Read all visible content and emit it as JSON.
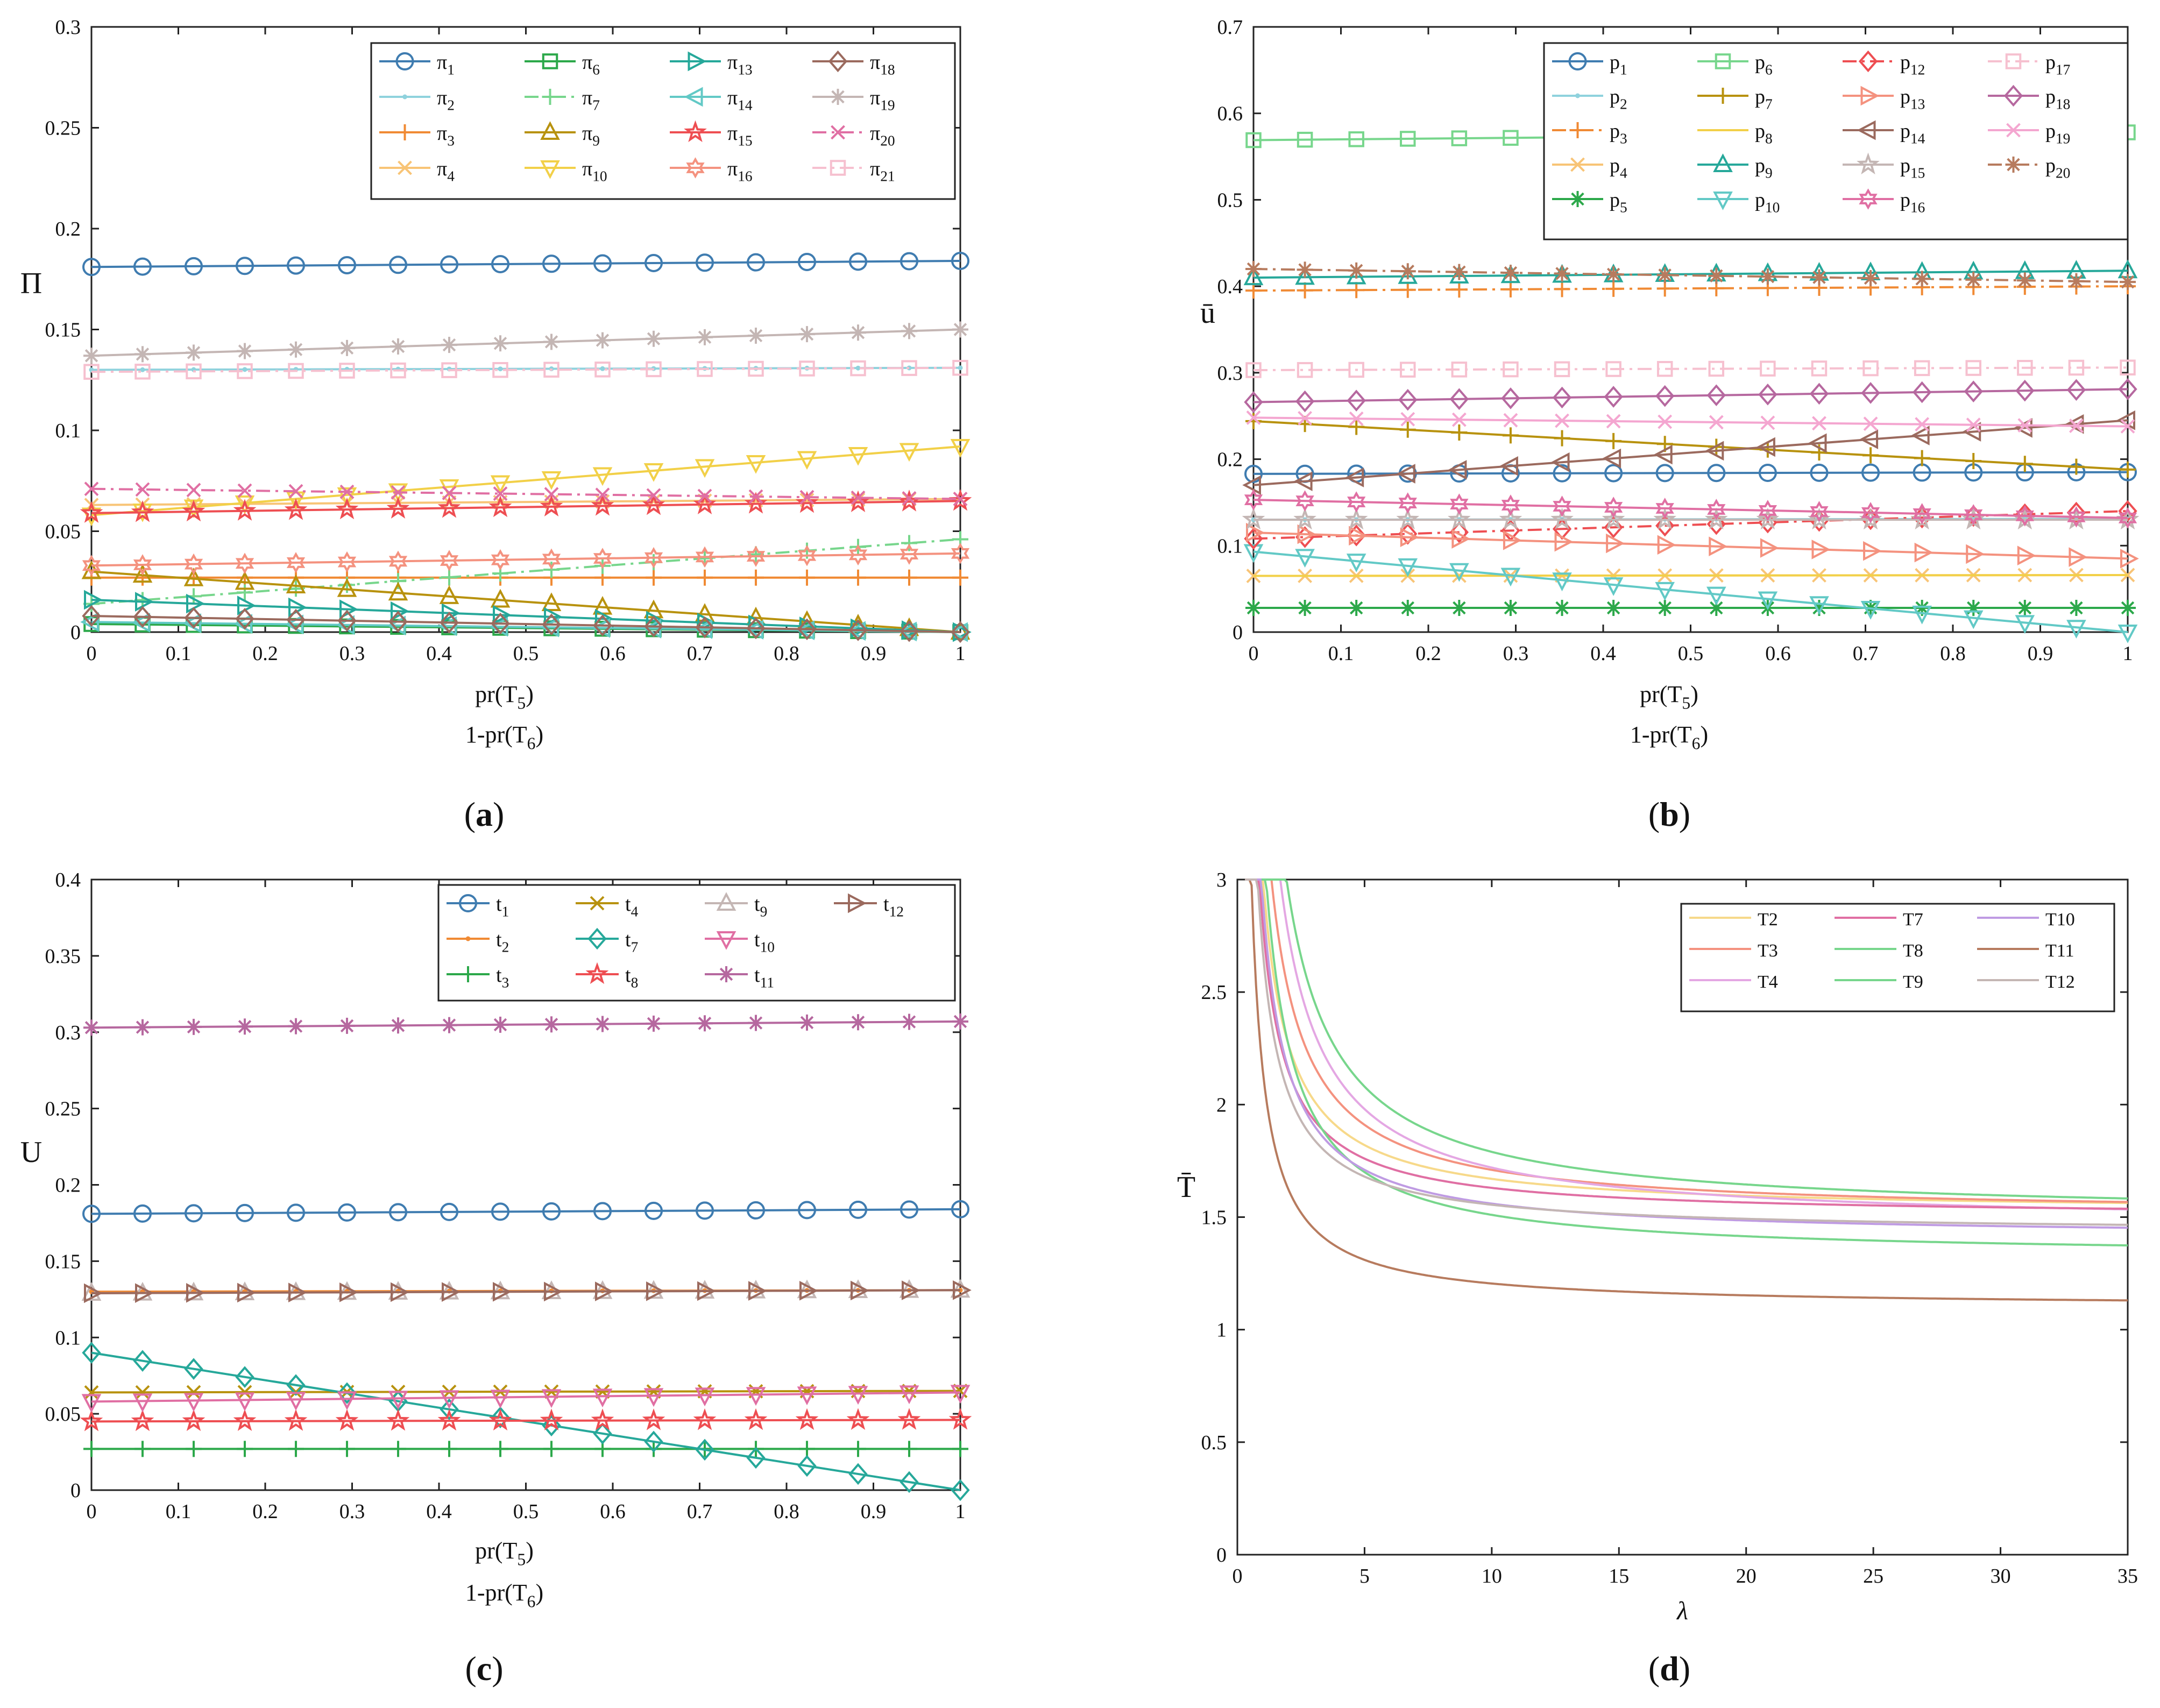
{
  "colors": {
    "c_blue": "#3f7cb0",
    "c_ltblue": "#8fd2dd",
    "c_orange": "#f08a34",
    "c_peach": "#f8c476",
    "c_green": "#2ca84a",
    "c_ltgreen": "#77d68c",
    "c_olive": "#b8920e",
    "c_gold": "#f2d048",
    "c_teal": "#26a89a",
    "c_cyan": "#62c9c6",
    "c_red": "#ee4e52",
    "c_salmon": "#f4927f",
    "c_grey": "#c4b6b4",
    "c_brown": "#9b6a5e",
    "c_purple": "#b6689f",
    "c_pink": "#f4a6d0",
    "c_magenta": "#e06fa3",
    "c_lavender": "#e4a7e3",
    "c_rust": "#b77b5e",
    "c_ltpink": "#f6c0cf",
    "c_yellow2": "#f7d98a",
    "c_violet": "#bf9be3"
  },
  "chart_data": [
    {
      "panel": "a",
      "caption_prefix": "(",
      "caption_letter": "a",
      "caption_suffix": ")",
      "type": "line",
      "ylabel": "Π",
      "xlabel_main": "pr(T",
      "xlabel_main_sub": "5",
      "xlabel_main_close": ")",
      "xlabel_second": "1-pr(T",
      "xlabel_second_sub": "6",
      "xlabel_second_close": ")",
      "xlim": [
        0,
        1
      ],
      "ylim": [
        0,
        0.3
      ],
      "xticks": [
        0,
        0.1,
        0.2,
        0.3,
        0.4,
        0.5,
        0.6,
        0.7,
        0.8,
        0.9,
        1
      ],
      "xtick_labels": [
        "0",
        "0.1",
        "0.2",
        "0.3",
        "0.4",
        "0.5",
        "0.6",
        "0.7",
        "0.8",
        "0.9",
        "1"
      ],
      "yticks": [
        0,
        0.05,
        0.1,
        0.15,
        0.2,
        0.25,
        0.3
      ],
      "ytick_labels": [
        "0",
        "0.05",
        "0.1",
        "0.15",
        "0.2",
        "0.25",
        "0.3"
      ],
      "legend_position": "top-right",
      "legend_columns": 4,
      "series": [
        {
          "name": "π",
          "sub": "1",
          "color": "c_blue",
          "marker": "circle",
          "dash": "solid",
          "start": 0.181,
          "end": 0.184
        },
        {
          "name": "π",
          "sub": "2",
          "color": "c_ltblue",
          "marker": "dot",
          "dash": "solid",
          "start": 0.13,
          "end": 0.131
        },
        {
          "name": "π",
          "sub": "3",
          "color": "c_orange",
          "marker": "plus",
          "dash": "solid",
          "start": 0.027,
          "end": 0.027
        },
        {
          "name": "π",
          "sub": "4",
          "color": "c_peach",
          "marker": "x",
          "dash": "solid",
          "start": 0.063,
          "end": 0.066
        },
        {
          "name": "π",
          "sub": "6",
          "color": "c_green",
          "marker": "square",
          "dash": "solid",
          "start": 0.004,
          "end": 0.0
        },
        {
          "name": "π",
          "sub": "7",
          "color": "c_ltgreen",
          "marker": "plus",
          "dash": "dashdot",
          "start": 0.014,
          "end": 0.046
        },
        {
          "name": "π",
          "sub": "9",
          "color": "c_olive",
          "marker": "triangle-up",
          "dash": "solid",
          "start": 0.03,
          "end": 0.0
        },
        {
          "name": "π",
          "sub": "10",
          "color": "c_gold",
          "marker": "triangle-down",
          "dash": "solid",
          "start": 0.058,
          "end": 0.092
        },
        {
          "name": "π",
          "sub": "13",
          "color": "c_teal",
          "marker": "triangle-right",
          "dash": "solid",
          "start": 0.016,
          "end": 0.0
        },
        {
          "name": "π",
          "sub": "14",
          "color": "c_cyan",
          "marker": "triangle-left",
          "dash": "solid",
          "start": 0.005,
          "end": 0.0
        },
        {
          "name": "π",
          "sub": "15",
          "color": "c_red",
          "marker": "star",
          "dash": "solid",
          "start": 0.059,
          "end": 0.065
        },
        {
          "name": "π",
          "sub": "16",
          "color": "c_salmon",
          "marker": "hexagram",
          "dash": "solid",
          "start": 0.033,
          "end": 0.039
        },
        {
          "name": "π",
          "sub": "18",
          "color": "c_brown",
          "marker": "diamond",
          "dash": "solid",
          "start": 0.008,
          "end": 0.0
        },
        {
          "name": "π",
          "sub": "19",
          "color": "c_grey",
          "marker": "asterisk",
          "dash": "solid",
          "start": 0.137,
          "end": 0.15
        },
        {
          "name": "π",
          "sub": "20",
          "color": "c_magenta",
          "marker": "x",
          "dash": "dashdot",
          "start": 0.071,
          "end": 0.066
        },
        {
          "name": "π",
          "sub": "21",
          "color": "c_ltpink",
          "marker": "square",
          "dash": "dashdot",
          "start": 0.129,
          "end": 0.131
        }
      ]
    },
    {
      "panel": "b",
      "caption_prefix": "(",
      "caption_letter": "b",
      "caption_suffix": ")",
      "type": "line",
      "ylabel": "ū",
      "xlabel_main": "pr(T",
      "xlabel_main_sub": "5",
      "xlabel_main_close": ")",
      "xlabel_second": "1-pr(T",
      "xlabel_second_sub": "6",
      "xlabel_second_close": ")",
      "xlim": [
        0,
        1
      ],
      "ylim": [
        0,
        0.7
      ],
      "xticks": [
        0,
        0.1,
        0.2,
        0.3,
        0.4,
        0.5,
        0.6,
        0.7,
        0.8,
        0.9,
        1
      ],
      "xtick_labels": [
        "0",
        "0.1",
        "0.2",
        "0.3",
        "0.4",
        "0.5",
        "0.6",
        "0.7",
        "0.8",
        "0.9",
        "1"
      ],
      "yticks": [
        0,
        0.1,
        0.2,
        0.3,
        0.4,
        0.5,
        0.6,
        0.7
      ],
      "ytick_labels": [
        "0",
        "0.1",
        "0.2",
        "0.3",
        "0.4",
        "0.5",
        "0.6",
        "0.7"
      ],
      "legend_position": "top-right",
      "legend_columns": 4,
      "series": [
        {
          "name": "p",
          "sub": "1",
          "color": "c_blue",
          "marker": "circle",
          "dash": "solid",
          "start": 0.183,
          "end": 0.185
        },
        {
          "name": "p",
          "sub": "2",
          "color": "c_ltblue",
          "marker": "dot",
          "dash": "solid",
          "start": 0.13,
          "end": 0.131
        },
        {
          "name": "p",
          "sub": "3",
          "color": "c_orange",
          "marker": "plus",
          "dash": "dashdot",
          "start": 0.395,
          "end": 0.4
        },
        {
          "name": "p",
          "sub": "4",
          "color": "c_peach",
          "marker": "x",
          "dash": "solid",
          "start": 0.065,
          "end": 0.066
        },
        {
          "name": "p",
          "sub": "5",
          "color": "c_green",
          "marker": "asterisk",
          "dash": "solid",
          "start": 0.028,
          "end": 0.028
        },
        {
          "name": "p",
          "sub": "6",
          "color": "c_ltgreen",
          "marker": "square",
          "dash": "solid",
          "start": 0.569,
          "end": 0.578
        },
        {
          "name": "p",
          "sub": "7",
          "color": "c_olive",
          "marker": "plus",
          "dash": "solid",
          "start": 0.244,
          "end": 0.188
        },
        {
          "name": "p",
          "sub": "8",
          "color": "c_gold",
          "marker": "none",
          "dash": "solid",
          "start": 0.065,
          "end": 0.066
        },
        {
          "name": "p",
          "sub": "9",
          "color": "c_teal",
          "marker": "triangle-up",
          "dash": "solid",
          "start": 0.41,
          "end": 0.418
        },
        {
          "name": "p",
          "sub": "10",
          "color": "c_cyan",
          "marker": "triangle-down",
          "dash": "solid",
          "start": 0.093,
          "end": 0.0
        },
        {
          "name": "p",
          "sub": "12",
          "color": "c_red",
          "marker": "diamond",
          "dash": "dashdot",
          "start": 0.108,
          "end": 0.14
        },
        {
          "name": "p",
          "sub": "13",
          "color": "c_salmon",
          "marker": "triangle-right",
          "dash": "solid",
          "start": 0.115,
          "end": 0.085
        },
        {
          "name": "p",
          "sub": "14",
          "color": "c_brown",
          "marker": "triangle-left",
          "dash": "solid",
          "start": 0.17,
          "end": 0.245
        },
        {
          "name": "p",
          "sub": "15",
          "color": "c_grey",
          "marker": "star",
          "dash": "solid",
          "start": 0.13,
          "end": 0.13
        },
        {
          "name": "p",
          "sub": "16",
          "color": "c_magenta",
          "marker": "hexagram",
          "dash": "solid",
          "start": 0.153,
          "end": 0.132
        },
        {
          "name": "p",
          "sub": "17",
          "color": "c_ltpink",
          "marker": "square",
          "dash": "dashdot",
          "start": 0.303,
          "end": 0.306
        },
        {
          "name": "p",
          "sub": "18",
          "color": "c_purple",
          "marker": "diamond",
          "dash": "solid",
          "start": 0.266,
          "end": 0.281
        },
        {
          "name": "p",
          "sub": "19",
          "color": "c_pink",
          "marker": "x",
          "dash": "solid",
          "start": 0.248,
          "end": 0.238
        },
        {
          "name": "p",
          "sub": "20",
          "color": "c_rust",
          "marker": "asterisk",
          "dash": "dashdot",
          "start": 0.42,
          "end": 0.405
        }
      ]
    },
    {
      "panel": "c",
      "caption_prefix": "(",
      "caption_letter": "c",
      "caption_suffix": ")",
      "type": "line",
      "ylabel": "U",
      "xlabel_main": "pr(T",
      "xlabel_main_sub": "5",
      "xlabel_main_close": ")",
      "xlabel_second": "1-pr(T",
      "xlabel_second_sub": "6",
      "xlabel_second_close": ")",
      "xlim": [
        0,
        1
      ],
      "ylim": [
        0,
        0.4
      ],
      "xticks": [
        0,
        0.1,
        0.2,
        0.3,
        0.4,
        0.5,
        0.6,
        0.7,
        0.8,
        0.9,
        1
      ],
      "xtick_labels": [
        "0",
        "0.1",
        "0.2",
        "0.3",
        "0.4",
        "0.5",
        "0.6",
        "0.7",
        "0.8",
        "0.9",
        "1"
      ],
      "yticks": [
        0,
        0.05,
        0.1,
        0.15,
        0.2,
        0.25,
        0.3,
        0.35,
        0.4
      ],
      "ytick_labels": [
        "0",
        "0.05",
        "0.1",
        "0.15",
        "0.2",
        "0.25",
        "0.3",
        "0.35",
        "0.4"
      ],
      "legend_position": "top-right",
      "legend_columns": 4,
      "series": [
        {
          "name": "t",
          "sub": "1",
          "color": "c_blue",
          "marker": "circle",
          "dash": "solid",
          "start": 0.181,
          "end": 0.184
        },
        {
          "name": "t",
          "sub": "2",
          "color": "c_orange",
          "marker": "dot",
          "dash": "solid",
          "start": 0.13,
          "end": 0.131
        },
        {
          "name": "t",
          "sub": "3",
          "color": "c_green",
          "marker": "plus",
          "dash": "solid",
          "start": 0.027,
          "end": 0.027
        },
        {
          "name": "t",
          "sub": "4",
          "color": "c_olive",
          "marker": "x",
          "dash": "solid",
          "start": 0.064,
          "end": 0.065
        },
        {
          "name": "t",
          "sub": "7",
          "color": "c_teal",
          "marker": "diamond",
          "dash": "solid",
          "start": 0.09,
          "end": 0.0
        },
        {
          "name": "t",
          "sub": "8",
          "color": "c_red",
          "marker": "star",
          "dash": "solid",
          "start": 0.045,
          "end": 0.046
        },
        {
          "name": "t",
          "sub": "9",
          "color": "c_grey",
          "marker": "triangle-up",
          "dash": "solid",
          "start": 0.129,
          "end": 0.131
        },
        {
          "name": "t",
          "sub": "10",
          "color": "c_magenta",
          "marker": "triangle-down",
          "dash": "solid",
          "start": 0.058,
          "end": 0.064
        },
        {
          "name": "t",
          "sub": "11",
          "color": "c_purple",
          "marker": "asterisk",
          "dash": "solid",
          "start": 0.303,
          "end": 0.307
        },
        {
          "name": "t",
          "sub": "12",
          "color": "c_brown",
          "marker": "triangle-right",
          "dash": "solid",
          "start": 0.129,
          "end": 0.131
        }
      ]
    },
    {
      "panel": "d",
      "caption_prefix": "(",
      "caption_letter": "d",
      "caption_suffix": ")",
      "type": "line",
      "ylabel": "T̄",
      "xlabel": "λ",
      "xlim": [
        0,
        35
      ],
      "ylim": [
        0,
        3
      ],
      "xticks": [
        0,
        5,
        10,
        15,
        20,
        25,
        30,
        35
      ],
      "xtick_labels": [
        "0",
        "5",
        "10",
        "15",
        "20",
        "25",
        "30",
        "35"
      ],
      "yticks": [
        0,
        0.5,
        1,
        1.5,
        2,
        2.5,
        3
      ],
      "ytick_labels": [
        "0",
        "0.5",
        "1",
        "1.5",
        "2",
        "2.5",
        "3"
      ],
      "legend_position": "top-right",
      "legend_columns": 3,
      "series": [
        {
          "name": "T2",
          "color": "c_yellow2",
          "asymptote": 1.52,
          "k": 1.5
        },
        {
          "name": "T3",
          "color": "c_salmon",
          "asymptote": 1.51,
          "k": 2.0
        },
        {
          "name": "T4",
          "color": "c_lavender",
          "asymptote": 1.46,
          "k": 2.6
        },
        {
          "name": "T7",
          "color": "c_magenta",
          "asymptote": 1.5,
          "k": 1.3
        },
        {
          "name": "T8",
          "color": "c_ltgreen",
          "asymptote": 1.5,
          "k": 2.9
        },
        {
          "name": "T9",
          "color": "c_ltgreen",
          "asymptote": 1.32,
          "k": 1.9
        },
        {
          "name": "T10",
          "color": "c_violet",
          "asymptote": 1.41,
          "k": 1.5
        },
        {
          "name": "T11",
          "color": "c_rust",
          "asymptote": 1.1,
          "k": 1.05
        },
        {
          "name": "T12",
          "color": "c_grey",
          "asymptote": 1.43,
          "k": 1.25
        }
      ]
    }
  ]
}
